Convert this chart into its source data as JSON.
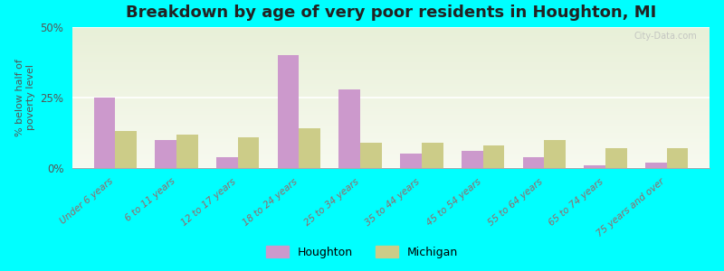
{
  "title": "Breakdown by age of very poor residents in Houghton, MI",
  "categories": [
    "Under 6 years",
    "6 to 11 years",
    "12 to 17 years",
    "18 to 24 years",
    "25 to 34 years",
    "35 to 44 years",
    "45 to 54 years",
    "55 to 64 years",
    "65 to 74 years",
    "75 years and over"
  ],
  "houghton_values": [
    25,
    10,
    4,
    40,
    28,
    5,
    6,
    4,
    1,
    2
  ],
  "michigan_values": [
    13,
    12,
    11,
    14,
    9,
    9,
    8,
    10,
    7,
    7
  ],
  "houghton_color": "#cc99cc",
  "michigan_color": "#cccc88",
  "background_color": "#00ffff",
  "ylabel": "% below half of\npoverty level",
  "ylim": [
    0,
    50
  ],
  "yticks": [
    0,
    25,
    50
  ],
  "ytick_labels": [
    "0%",
    "25%",
    "50%"
  ],
  "bar_width": 0.35,
  "title_fontsize": 13,
  "tick_fontsize": 7.5,
  "legend_labels": [
    "Houghton",
    "Michigan"
  ],
  "watermark": "City-Data.com"
}
